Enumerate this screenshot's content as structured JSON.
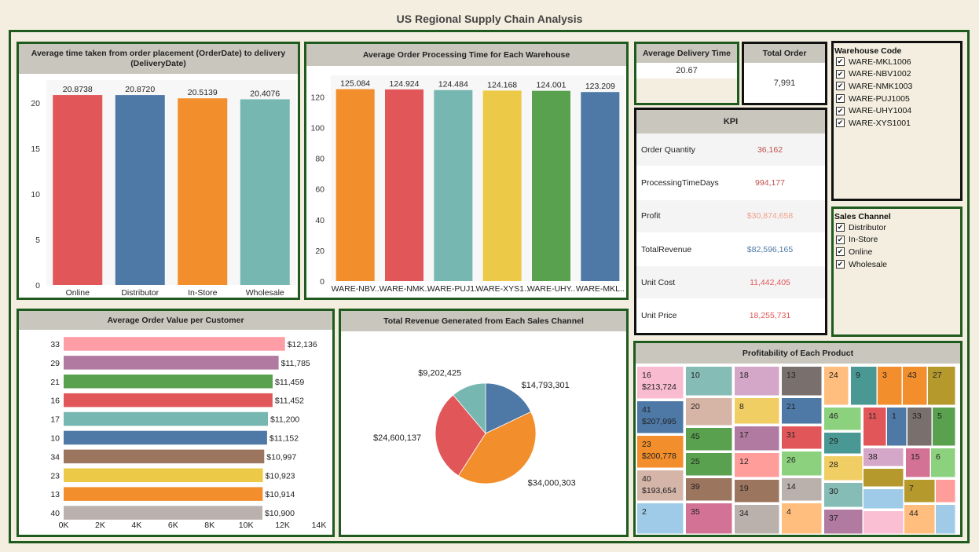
{
  "title": "US Regional Supply Chain Analysis",
  "delivery_chart": {
    "type": "bar",
    "title": "Average time taken from order placement (OrderDate) to delivery (DeliveryDate)",
    "categories": [
      "Online",
      "Distributor",
      "In-Store",
      "Wholesale"
    ],
    "values": [
      20.8738,
      20.872,
      20.5139,
      20.4076
    ],
    "labels": [
      "20.8738",
      "20.8720",
      "20.5139",
      "20.4076"
    ],
    "colors": [
      "#e15759",
      "#4e79a7",
      "#f28e2b",
      "#76b7b2"
    ],
    "ylim": [
      0,
      22
    ],
    "yticks": [
      0,
      5,
      10,
      15,
      20
    ]
  },
  "processing_chart": {
    "type": "bar",
    "title": "Average Order Processing Time for Each Warehouse",
    "categories": [
      "WARE-NBV..",
      "WARE-NMK..",
      "WARE-PUJ1..",
      "WARE-XYS1..",
      "WARE-UHY..",
      "WARE-MKL.."
    ],
    "values": [
      125.084,
      124.924,
      124.484,
      124.168,
      124.001,
      123.209
    ],
    "labels": [
      "125.084",
      "124.924",
      "124.484",
      "124.168",
      "124.001",
      "123.209"
    ],
    "colors": [
      "#f28e2b",
      "#e15759",
      "#76b7b2",
      "#edc948",
      "#59a14f",
      "#4e79a7"
    ],
    "ylim": [
      0,
      131
    ],
    "yticks": [
      0,
      20,
      40,
      60,
      80,
      100,
      120
    ]
  },
  "avg_delivery": {
    "title": "Average Delivery Time",
    "value": "20.67"
  },
  "total_order": {
    "title": "Total Order",
    "value": "7,991"
  },
  "kpi": {
    "title": "KPI",
    "rows": [
      {
        "label": "Order Quantity",
        "value": "36,162",
        "color": "#c0504d"
      },
      {
        "label": "ProcessingTimeDays",
        "value": "994,177",
        "color": "#c0504d"
      },
      {
        "label": "Profit",
        "value": "$30,874,658",
        "color": "#f0a08a"
      },
      {
        "label": "TotalRevenue",
        "value": "$82,596,165",
        "color": "#4e79a7"
      },
      {
        "label": "Unit Cost",
        "value": "11,442,405",
        "color": "#e15759"
      },
      {
        "label": "Unit Price",
        "value": "18,255,731",
        "color": "#e15759"
      }
    ]
  },
  "warehouse_filter": {
    "title": "Warehouse Code",
    "items": [
      "WARE-MKL1006",
      "WARE-NBV1002",
      "WARE-NMK1003",
      "WARE-PUJ1005",
      "WARE-UHY1004",
      "WARE-XYS1001"
    ]
  },
  "channel_filter": {
    "title": "Sales Channel",
    "items": [
      "Distributor",
      "In-Store",
      "Online",
      "Wholesale"
    ]
  },
  "check_glyph": "✔",
  "customer_chart": {
    "type": "bar",
    "orientation": "horizontal",
    "title": "Average Order Value per Customer",
    "categories": [
      "33",
      "29",
      "21",
      "16",
      "17",
      "10",
      "34",
      "23",
      "13",
      "40"
    ],
    "values": [
      12136,
      11785,
      11459,
      11452,
      11200,
      11152,
      10997,
      10923,
      10914,
      10900
    ],
    "labels": [
      "$12,136",
      "$11,785",
      "$11,459",
      "$11,452",
      "$11,200",
      "$11,152",
      "$10,997",
      "$10,923",
      "$10,914",
      "$10,900"
    ],
    "colors": [
      "#ff9da7",
      "#b07aa1",
      "#59a14f",
      "#e15759",
      "#76b7b2",
      "#4e79a7",
      "#9c755f",
      "#edc948",
      "#f28e2b",
      "#bab0ac"
    ],
    "xlim": [
      0,
      14000
    ],
    "xticks": [
      "0K",
      "2K",
      "4K",
      "6K",
      "8K",
      "10K",
      "12K",
      "14K"
    ]
  },
  "channel_chart": {
    "type": "pie",
    "title": "Total Revenue Generated from Each Sales Channel",
    "slices": [
      {
        "value": 14793301,
        "label": "$14,793,301",
        "color": "#4e79a7"
      },
      {
        "value": 34000303,
        "label": "$34,000,303",
        "color": "#f28e2b"
      },
      {
        "value": 24600137,
        "label": "$24,600,137",
        "color": "#e15759"
      },
      {
        "value": 9202425,
        "label": "$9,202,425",
        "color": "#76b7b2"
      }
    ]
  },
  "product_chart": {
    "type": "treemap",
    "title": "Profitability of Each Product",
    "tiles": [
      {
        "id": "16",
        "value": "$213,724",
        "color": "#f8bbd0"
      },
      {
        "id": "41",
        "value": "$207,995",
        "color": "#4e79a7"
      },
      {
        "id": "23",
        "value": "$200,778",
        "color": "#f28e2b"
      },
      {
        "id": "40",
        "value": "$193,654",
        "color": "#d4b5a8"
      },
      {
        "id": "2",
        "value": "",
        "color": "#a0cbe8"
      },
      {
        "id": "10",
        "value": "",
        "color": "#86bcb6"
      },
      {
        "id": "20",
        "value": "",
        "color": "#d7b5a6"
      },
      {
        "id": "45",
        "value": "",
        "color": "#59a14f"
      },
      {
        "id": "25",
        "value": "",
        "color": "#59a14f"
      },
      {
        "id": "39",
        "value": "",
        "color": "#9c755f"
      },
      {
        "id": "35",
        "value": "",
        "color": "#d37295"
      },
      {
        "id": "18",
        "value": "",
        "color": "#d4a6c8"
      },
      {
        "id": "8",
        "value": "",
        "color": "#f1ce63"
      },
      {
        "id": "17",
        "value": "",
        "color": "#b07aa1"
      },
      {
        "id": "12",
        "value": "",
        "color": "#ff9d9a"
      },
      {
        "id": "19",
        "value": "",
        "color": "#9c755f"
      },
      {
        "id": "34",
        "value": "",
        "color": "#bab0ac"
      },
      {
        "id": "13",
        "value": "",
        "color": "#79706e"
      },
      {
        "id": "21",
        "value": "",
        "color": "#4e79a7"
      },
      {
        "id": "31",
        "value": "",
        "color": "#e15759"
      },
      {
        "id": "26",
        "value": "",
        "color": "#8cd17d"
      },
      {
        "id": "14",
        "value": "",
        "color": "#bab0ac"
      },
      {
        "id": "4",
        "value": "",
        "color": "#ffbe7d"
      },
      {
        "id": "24",
        "value": "",
        "color": "#ffbe7d"
      },
      {
        "id": "9",
        "value": "",
        "color": "#499894"
      },
      {
        "id": "3",
        "value": "",
        "color": "#f28e2b"
      },
      {
        "id": "43",
        "value": "",
        "color": "#f28e2b"
      },
      {
        "id": "27",
        "value": "",
        "color": "#b6992d"
      },
      {
        "id": "46",
        "value": "",
        "color": "#8cd17d"
      },
      {
        "id": "11",
        "value": "",
        "color": "#e15759"
      },
      {
        "id": "1",
        "value": "",
        "color": "#4e79a7"
      },
      {
        "id": "33",
        "value": "",
        "color": "#79706e"
      },
      {
        "id": "5",
        "value": "",
        "color": "#59a14f"
      },
      {
        "id": "29",
        "value": "",
        "color": "#499894"
      },
      {
        "id": "38",
        "value": "",
        "color": "#d4a6c8"
      },
      {
        "id": "15",
        "value": "",
        "color": "#d37295"
      },
      {
        "id": "6",
        "value": "",
        "color": "#8cd17d"
      },
      {
        "id": "28",
        "value": "",
        "color": "#f1ce63"
      },
      {
        "id": "",
        "value": "",
        "color": "#b6992d"
      },
      {
        "id": "30",
        "value": "",
        "color": "#86bcb6"
      },
      {
        "id": "7",
        "value": "",
        "color": "#b6992d"
      },
      {
        "id": "",
        "value": "",
        "color": "#ff9d9a"
      },
      {
        "id": "",
        "value": "",
        "color": "#a0cbe8"
      },
      {
        "id": "37",
        "value": "",
        "color": "#b07aa1"
      },
      {
        "id": "",
        "value": "",
        "color": "#fabfd2"
      },
      {
        "id": "44",
        "value": "",
        "color": "#ffbe7d"
      },
      {
        "id": "",
        "value": "",
        "color": "#a0cbe8"
      }
    ]
  }
}
